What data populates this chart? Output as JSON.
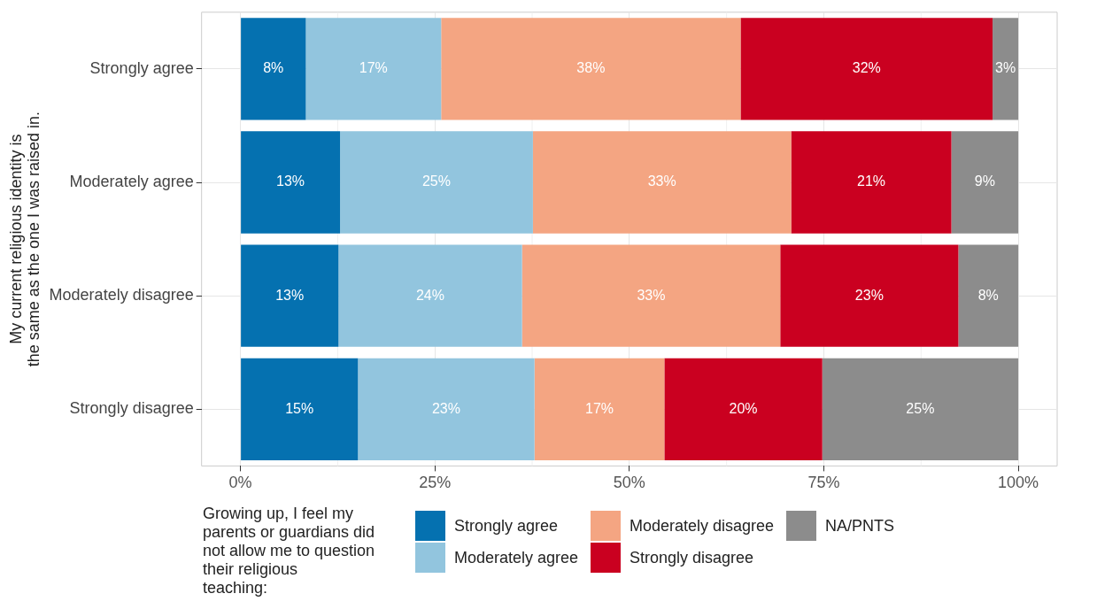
{
  "chart_data": {
    "type": "bar",
    "orientation": "horizontal",
    "stacked": true,
    "ylabel": "My current religious identity is the same as the one I was raised in.",
    "legend_title": "Growing up, I feel my parents or guardians did not allow me to question their religious teaching:",
    "categories": [
      "Strongly agree",
      "Moderately agree",
      "Moderately disagree",
      "Strongly disagree"
    ],
    "series": [
      {
        "name": "Strongly agree",
        "color": "#0571b0",
        "values": [
          8.4,
          12.8,
          12.6,
          15.1
        ],
        "value_labels": [
          "8%",
          "13%",
          "13%",
          "15%"
        ]
      },
      {
        "name": "Moderately agree",
        "color": "#92c5de",
        "values": [
          17.4,
          24.8,
          23.6,
          22.7
        ],
        "value_labels": [
          "17%",
          "25%",
          "24%",
          "23%"
        ]
      },
      {
        "name": "Moderately disagree",
        "color": "#f4a582",
        "values": [
          38.5,
          33.2,
          33.2,
          16.7
        ],
        "value_labels": [
          "38%",
          "33%",
          "33%",
          "17%"
        ]
      },
      {
        "name": "Strongly disagree",
        "color": "#ca0020",
        "values": [
          32.4,
          20.6,
          22.9,
          20.3
        ],
        "value_labels": [
          "32%",
          "21%",
          "23%",
          "20%"
        ]
      },
      {
        "name": "NA/PNTS",
        "color": "#8c8c8c",
        "values": [
          3.3,
          8.6,
          7.7,
          25.2
        ],
        "value_labels": [
          "3%",
          "9%",
          "8%",
          "25%"
        ]
      }
    ],
    "xlim": [
      -5,
      105
    ],
    "xticks": [
      {
        "value": 0,
        "label": "0%"
      },
      {
        "value": 25,
        "label": "25%"
      },
      {
        "value": 50,
        "label": "50%"
      },
      {
        "value": 75,
        "label": "75%"
      },
      {
        "value": 100,
        "label": "100%"
      }
    ],
    "grid": true,
    "legend": "bottom"
  }
}
